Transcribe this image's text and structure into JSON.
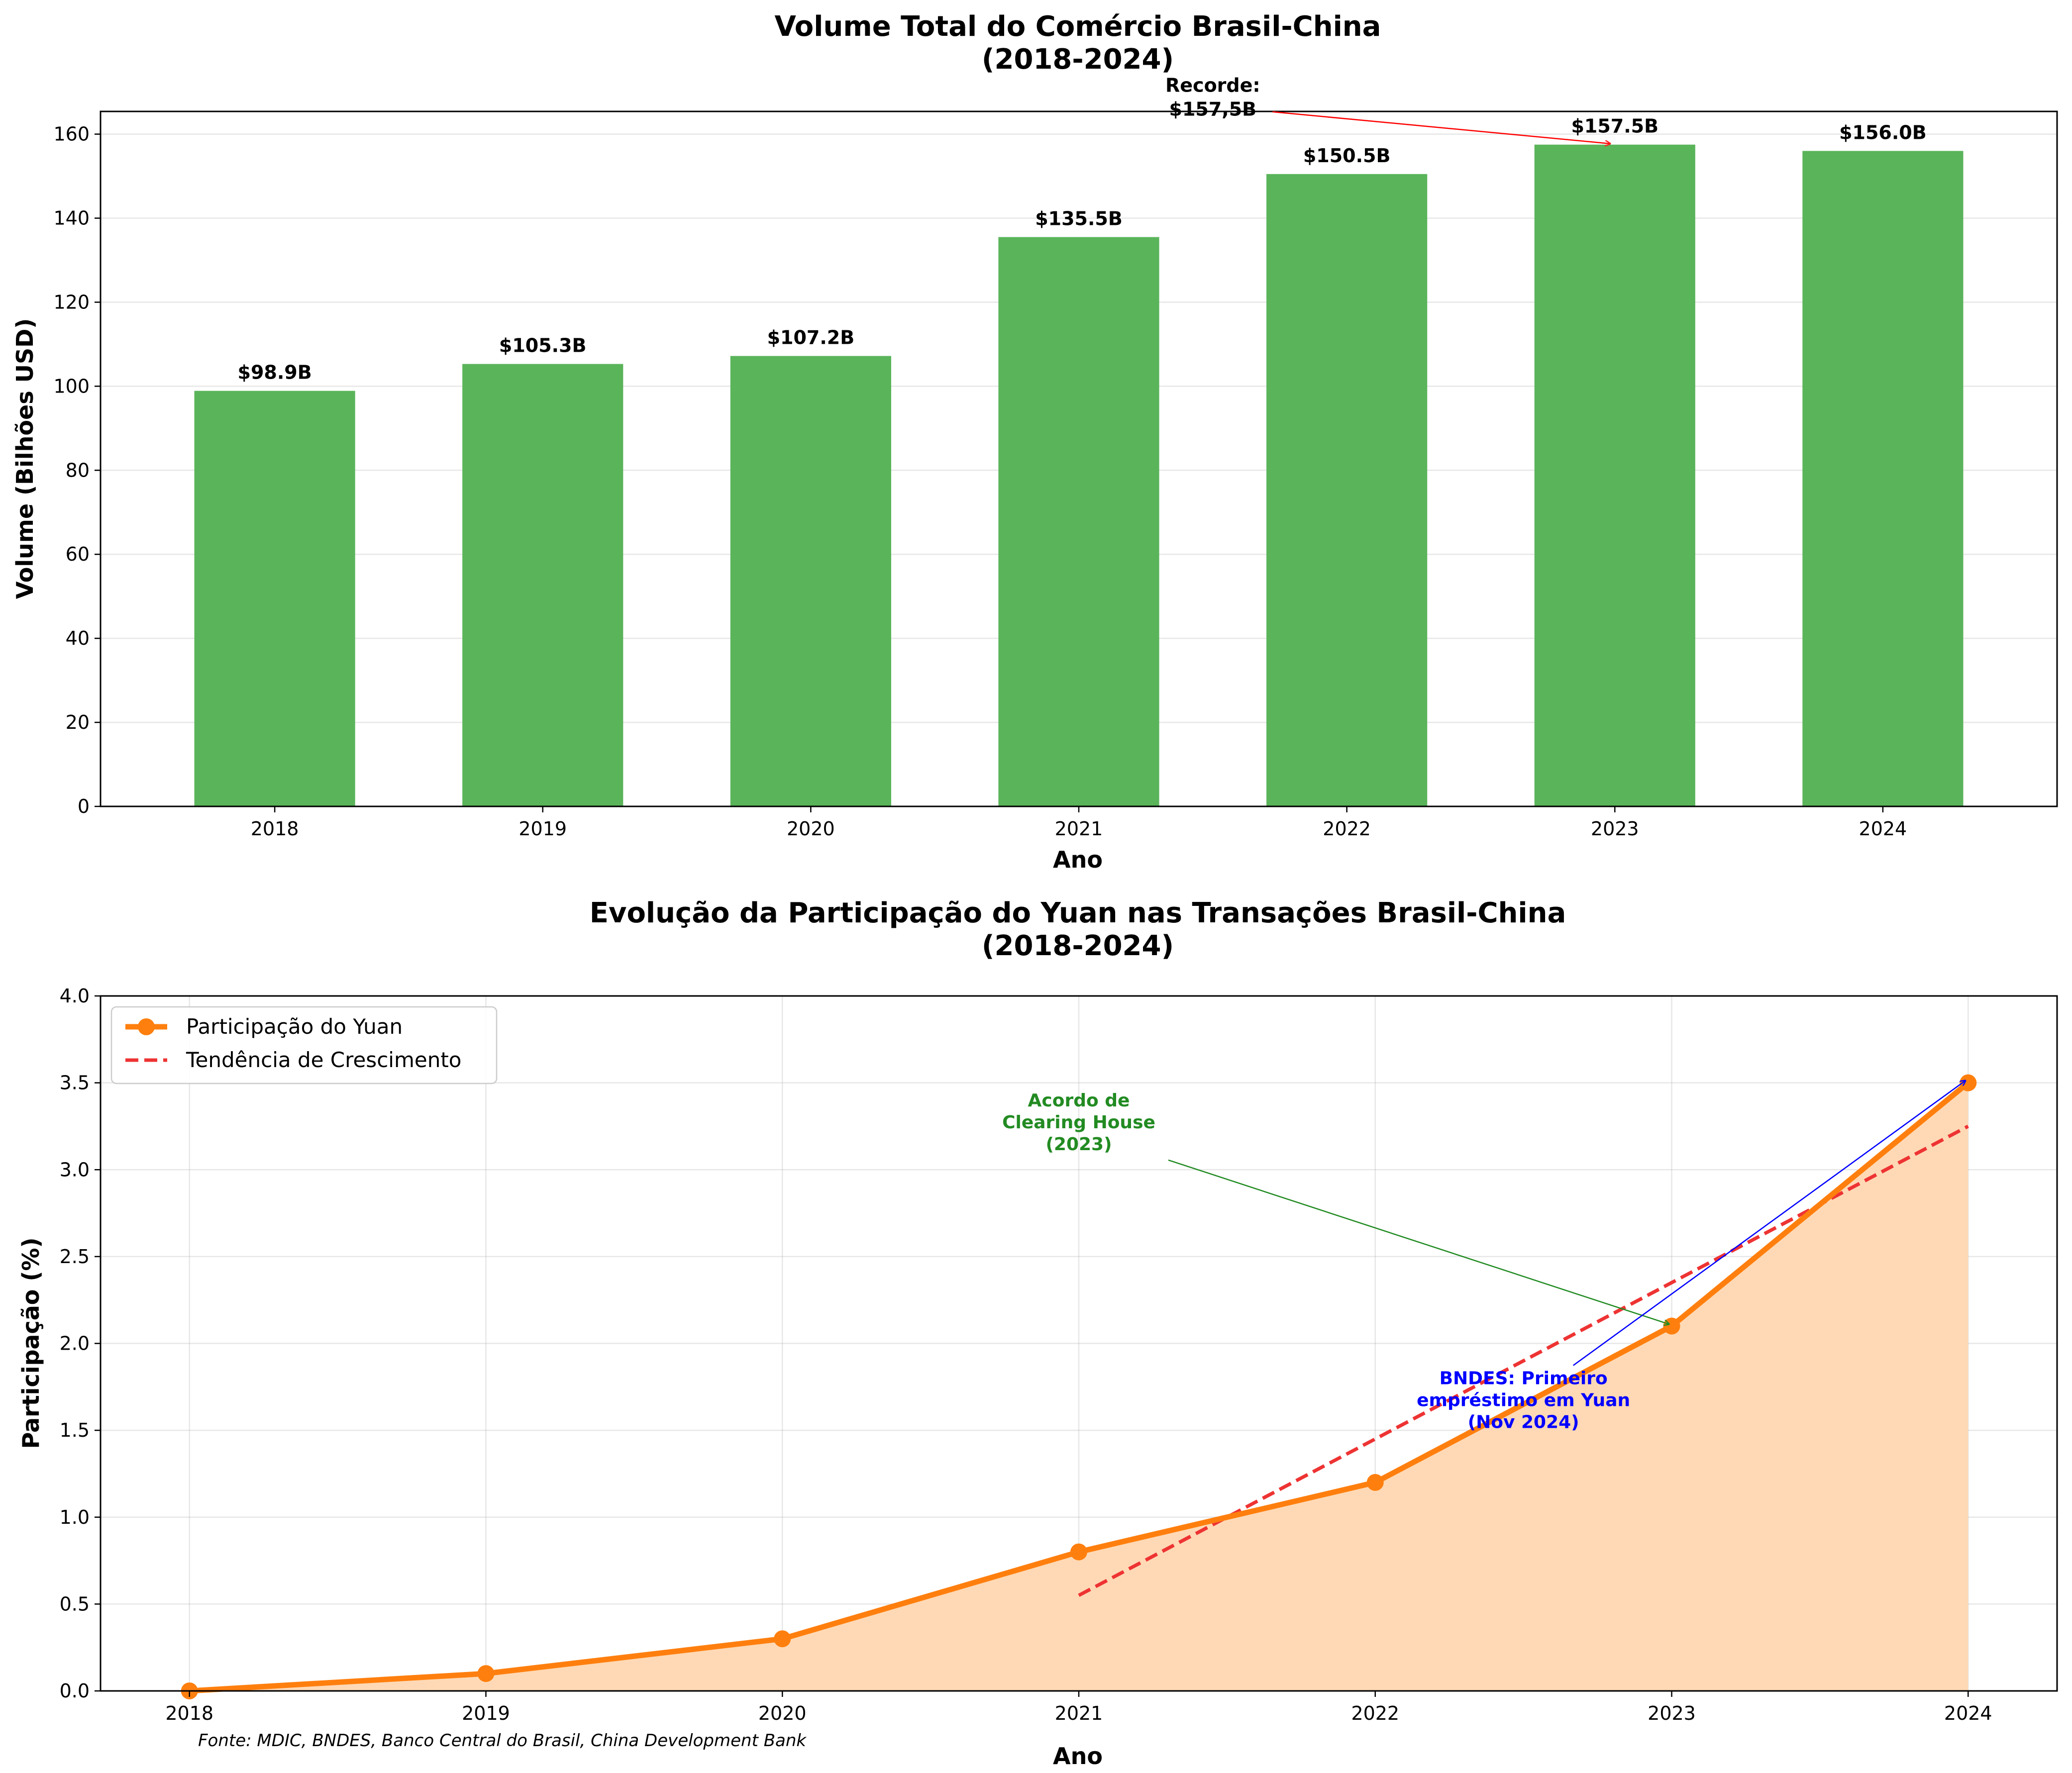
{
  "source_note": "Fonte: MDIC, BNDES, Banco Central do Brasil, China Development Bank",
  "colors": {
    "bar": "#5ab45a",
    "line": "#ff7f0e",
    "fill": "#ffd9b5",
    "trend": "#ee3333",
    "record": "#ff0000",
    "clearing": "#228b22",
    "bndes": "#0000ff"
  },
  "chart_data": [
    {
      "type": "bar",
      "title_line1": "Volume Total do Comércio Brasil-China",
      "title_line2": "(2018-2024)",
      "xlabel": "Ano",
      "ylabel": "Volume (Bilhões USD)",
      "categories": [
        "2018",
        "2019",
        "2020",
        "2021",
        "2022",
        "2023",
        "2024"
      ],
      "values": [
        98.9,
        105.3,
        107.2,
        135.5,
        150.5,
        157.5,
        156.0
      ],
      "value_labels": [
        "$98.9B",
        "$105.3B",
        "$107.2B",
        "$135.5B",
        "$150.5B",
        "$157.5B",
        "$156.0B"
      ],
      "ylim": [
        0,
        165.4
      ],
      "yticks": [
        0,
        20,
        40,
        60,
        80,
        100,
        120,
        140,
        160
      ],
      "grid": "y",
      "annotation": {
        "line1": "Recorde:",
        "line2": "$157,5B",
        "target_category": "2023",
        "target_value": 157.5,
        "text_x": 2021.5,
        "text_y": 171
      }
    },
    {
      "type": "line",
      "title_line1": "Evolução da Participação do Yuan nas Transações Brasil-China",
      "title_line2": "(2018-2024)",
      "xlabel": "Ano",
      "ylabel": "Participação (%)",
      "x": [
        2018,
        2019,
        2020,
        2021,
        2022,
        2023,
        2024
      ],
      "xtick_labels": [
        "2018",
        "2019",
        "2020",
        "2021",
        "2022",
        "2023",
        "2024"
      ],
      "xlim": [
        2017.7,
        2024.3
      ],
      "ylim": [
        0,
        4.0
      ],
      "yticks": [
        0.0,
        0.5,
        1.0,
        1.5,
        2.0,
        2.5,
        3.0,
        3.5,
        4.0
      ],
      "ytick_labels": [
        "0.0",
        "0.5",
        "1.0",
        "1.5",
        "2.0",
        "2.5",
        "3.0",
        "3.5",
        "4.0"
      ],
      "grid": "both",
      "legend_position": "upper-left",
      "series": [
        {
          "name": "Participação do Yuan",
          "values": [
            0.0,
            0.1,
            0.3,
            0.8,
            1.2,
            2.1,
            3.5
          ]
        },
        {
          "name": "Tendência de Crescimento",
          "x": [
            2021,
            2024
          ],
          "values": [
            0.55,
            3.25
          ]
        }
      ],
      "annotations": [
        {
          "lines": [
            "Acordo de",
            "Clearing House",
            "(2023)"
          ],
          "target": [
            2023,
            2.1
          ],
          "text_at": [
            2021,
            3.25
          ],
          "color_key": "clearing"
        },
        {
          "lines": [
            "BNDES: Primeiro",
            "empréstimo em Yuan",
            "(Nov 2024)"
          ],
          "target": [
            2024,
            3.5
          ],
          "text_at": [
            2022.5,
            1.65
          ],
          "color_key": "bndes"
        }
      ]
    }
  ]
}
